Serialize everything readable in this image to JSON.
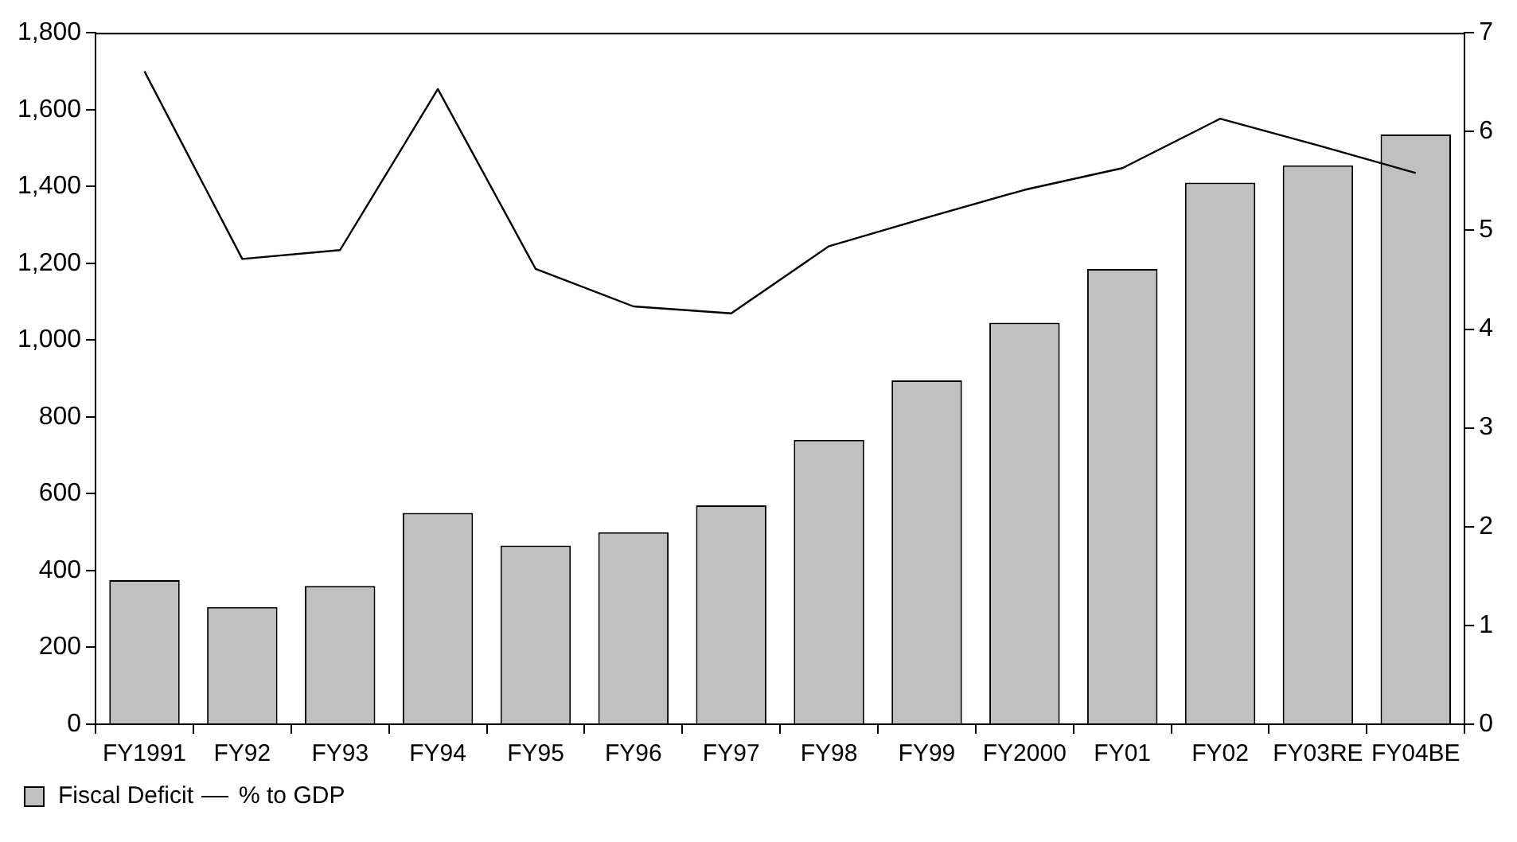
{
  "chart_data": {
    "type": "bar",
    "categories": [
      "FY1991",
      "FY92",
      "FY93",
      "FY94",
      "FY95",
      "FY96",
      "FY97",
      "FY98",
      "FY99",
      "FY2000",
      "FY01",
      "FY02",
      "FY03RE",
      "FY04BE"
    ],
    "series": [
      {
        "name": "Fiscal Deficit",
        "color": "#c0c0c0",
        "values": [
          375,
          305,
          360,
          550,
          465,
          500,
          570,
          740,
          895,
          1045,
          1185,
          1410,
          1455,
          1535
        ]
      },
      {
        "name": "% to GDP",
        "type": "line",
        "axis": "y2",
        "color": "#000000",
        "values": [
          6.61,
          4.71,
          4.8,
          6.43,
          4.61,
          4.23,
          4.16,
          4.84,
          5.13,
          5.41,
          5.63,
          6.13,
          5.86,
          5.58
        ]
      }
    ],
    "ylim": [
      0,
      1800
    ],
    "yticks": [
      {
        "value": 0,
        "label": "0"
      },
      {
        "value": 200,
        "label": "200"
      },
      {
        "value": 400,
        "label": "400"
      },
      {
        "value": 600,
        "label": "600"
      },
      {
        "value": 800,
        "label": "800"
      },
      {
        "value": 1000,
        "label": "1,000"
      },
      {
        "value": 1200,
        "label": "1,200"
      },
      {
        "value": 1400,
        "label": "1,400"
      },
      {
        "value": 1600,
        "label": "1,600"
      },
      {
        "value": 1800,
        "label": "1,800"
      }
    ],
    "y2lim": [
      0,
      7
    ],
    "y2ticks": [
      0,
      1,
      2,
      3,
      4,
      5,
      6,
      7
    ],
    "legend": "bottom left",
    "grid": false,
    "marker": "none",
    "line_style": "solid"
  }
}
